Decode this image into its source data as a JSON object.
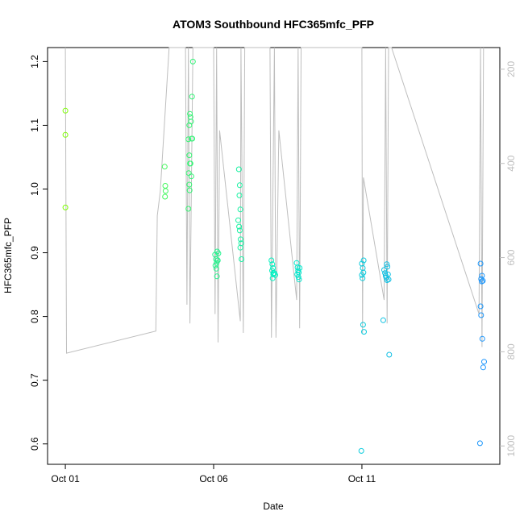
{
  "chart_data": {
    "type": "scatter",
    "title": "ATOM3 Southbound HFC365mfc_PFP",
    "xlabel": "Date",
    "ylabel": "HFC365mfc_PFP",
    "x_ticks": [
      "Oct 01",
      "Oct 06",
      "Oct 11"
    ],
    "x_tick_days": [
      1,
      6,
      11
    ],
    "xlim": [
      0.4,
      15.65
    ],
    "ylim": [
      0.568,
      1.222
    ],
    "y_ticks": [
      0.6,
      0.7,
      0.8,
      0.9,
      1.0,
      1.1,
      1.2
    ],
    "y_tick_labels": [
      "0.6",
      "0.7",
      "0.8",
      "0.9",
      "1.0",
      "1.1",
      "1.2"
    ],
    "y2_label": "",
    "y2lim": [
      1039,
      154
    ],
    "y2_ticks": [
      200,
      400,
      600,
      800,
      1000
    ],
    "y2_tick_labels": [
      "200",
      "400",
      "600",
      "800",
      "1000"
    ],
    "colors": {
      "points_early": "#7CFC00",
      "points_mid": "#00E5A0",
      "points_late": "#1E90FF",
      "altitude_line": "#BEBEBE",
      "axis": "#000000",
      "secondary_axis": "#BEBEBE"
    },
    "grid": false,
    "series": [
      {
        "points": [
          [
            1.0,
            1.123
          ],
          [
            1.0,
            1.085
          ],
          [
            1.0,
            0.971
          ],
          [
            4.35,
            1.035
          ],
          [
            4.37,
            1.005
          ],
          [
            4.38,
            0.997
          ],
          [
            4.36,
            0.988
          ],
          [
            5.15,
            1.078
          ],
          [
            5.18,
            1.1
          ],
          [
            5.2,
            1.118
          ],
          [
            5.22,
            1.113
          ],
          [
            5.24,
            1.106
          ],
          [
            5.26,
            1.079
          ],
          [
            5.28,
            1.079
          ],
          [
            5.3,
            1.2
          ],
          [
            5.27,
            1.145
          ],
          [
            5.18,
            1.053
          ],
          [
            5.2,
            1.04
          ],
          [
            5.22,
            1.04
          ],
          [
            5.25,
            1.02
          ],
          [
            5.16,
            1.025
          ],
          [
            5.18,
            1.007
          ],
          [
            5.19,
            0.998
          ],
          [
            5.15,
            0.969
          ],
          [
            6.05,
            0.897
          ],
          [
            6.08,
            0.89
          ],
          [
            6.1,
            0.884
          ],
          [
            6.12,
            0.902
          ],
          [
            6.13,
            0.888
          ],
          [
            6.06,
            0.88
          ],
          [
            6.09,
            0.875
          ],
          [
            6.11,
            0.863
          ],
          [
            6.14,
            0.888
          ],
          [
            6.16,
            0.899
          ],
          [
            6.85,
            1.031
          ],
          [
            6.88,
            1.006
          ],
          [
            6.87,
            0.99
          ],
          [
            6.9,
            0.968
          ],
          [
            6.83,
            0.951
          ],
          [
            6.86,
            0.941
          ],
          [
            6.88,
            0.935
          ],
          [
            6.91,
            0.921
          ],
          [
            6.93,
            0.915
          ],
          [
            6.9,
            0.908
          ],
          [
            6.94,
            0.89
          ],
          [
            7.95,
            0.888
          ],
          [
            7.98,
            0.882
          ],
          [
            8.0,
            0.876
          ],
          [
            8.02,
            0.868
          ],
          [
            7.97,
            0.872
          ],
          [
            8.05,
            0.868
          ],
          [
            8.08,
            0.865
          ],
          [
            7.99,
            0.86
          ],
          [
            8.01,
            0.866
          ],
          [
            8.8,
            0.884
          ],
          [
            8.83,
            0.877
          ],
          [
            8.85,
            0.872
          ],
          [
            8.87,
            0.869
          ],
          [
            8.82,
            0.866
          ],
          [
            8.86,
            0.862
          ],
          [
            8.88,
            0.858
          ],
          [
            8.9,
            0.876
          ],
          [
            11.0,
            0.883
          ],
          [
            11.03,
            0.876
          ],
          [
            11.05,
            0.869
          ],
          [
            11.0,
            0.865
          ],
          [
            11.02,
            0.86
          ],
          [
            11.04,
            0.787
          ],
          [
            11.07,
            0.776
          ],
          [
            10.98,
            0.589
          ],
          [
            11.06,
            0.888
          ],
          [
            11.75,
            0.873
          ],
          [
            11.78,
            0.868
          ],
          [
            11.8,
            0.864
          ],
          [
            11.82,
            0.861
          ],
          [
            11.85,
            0.857
          ],
          [
            11.88,
            0.866
          ],
          [
            11.86,
            0.878
          ],
          [
            11.84,
            0.882
          ],
          [
            11.9,
            0.858
          ],
          [
            11.72,
            0.794
          ],
          [
            11.92,
            0.74
          ],
          [
            15.0,
            0.883
          ],
          [
            15.05,
            0.864
          ],
          [
            15.08,
            0.856
          ],
          [
            15.02,
            0.859
          ],
          [
            15.04,
            0.855
          ],
          [
            15.0,
            0.816
          ],
          [
            15.02,
            0.802
          ],
          [
            15.06,
            0.765
          ],
          [
            15.12,
            0.729
          ],
          [
            15.09,
            0.72
          ],
          [
            14.98,
            0.601
          ]
        ]
      },
      {
        "axis": "secondary",
        "points": [
          [
            1.0,
            103
          ],
          [
            1.04,
            803
          ],
          [
            4.05,
            756
          ],
          [
            4.1,
            511
          ],
          [
            4.2,
            460
          ],
          [
            4.5,
            150
          ],
          [
            5.05,
            150
          ],
          [
            5.1,
            700
          ],
          [
            5.15,
            130
          ],
          [
            5.2,
            740
          ],
          [
            5.3,
            150
          ],
          [
            5.4,
            120
          ],
          [
            6.0,
            110
          ],
          [
            6.05,
            720
          ],
          [
            6.1,
            150
          ],
          [
            6.15,
            780
          ],
          [
            6.2,
            330
          ],
          [
            6.9,
            735
          ],
          [
            6.92,
            150
          ],
          [
            7.0,
            760
          ],
          [
            7.05,
            150
          ],
          [
            7.5,
            120
          ],
          [
            7.9,
            130
          ],
          [
            7.95,
            770
          ],
          [
            8.05,
            130
          ],
          [
            8.1,
            770
          ],
          [
            8.2,
            330
          ],
          [
            8.8,
            690
          ],
          [
            8.85,
            140
          ],
          [
            8.9,
            750
          ],
          [
            8.95,
            130
          ],
          [
            9.0,
            120
          ],
          [
            11.0,
            120
          ],
          [
            11.02,
            760
          ],
          [
            11.05,
            430
          ],
          [
            11.75,
            690
          ],
          [
            11.8,
            130
          ],
          [
            11.85,
            740
          ],
          [
            11.9,
            130
          ],
          [
            12.0,
            120
          ],
          [
            14.95,
            720
          ],
          [
            15.0,
            120
          ],
          [
            15.05,
            790
          ],
          [
            15.1,
            120
          ]
        ]
      }
    ]
  }
}
